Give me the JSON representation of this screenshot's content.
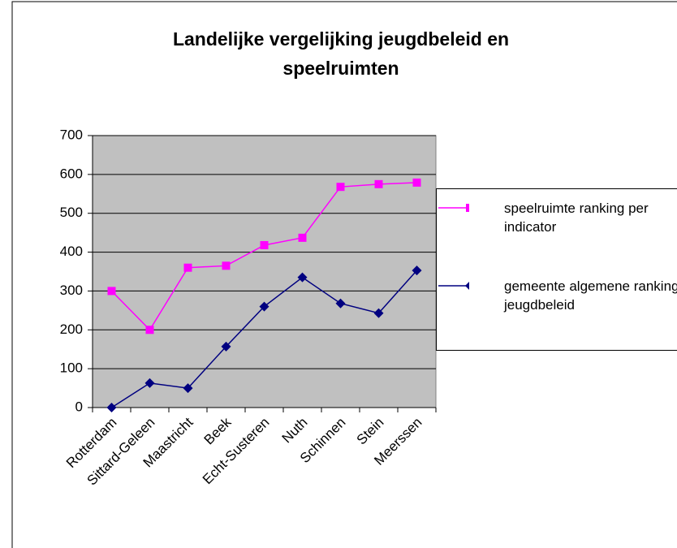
{
  "chart_data": {
    "type": "line",
    "title": "Landelijke vergelijking jeugdbeleid en speelruimten",
    "categories": [
      "Rotterdam",
      "Sittard-Geleen",
      "Maastricht",
      "Beek",
      "Echt-Susteren",
      "Nuth",
      "Schinnen",
      "Stein",
      "Meerssen"
    ],
    "series": [
      {
        "name": "speelruimte ranking per indicator",
        "color": "#ff00ff",
        "marker": "square",
        "values": [
          300,
          200,
          360,
          365,
          418,
          437,
          568,
          575,
          579
        ]
      },
      {
        "name": "gemeente algemene ranking jeugdbeleid",
        "color": "#000080",
        "marker": "diamond",
        "values": [
          0,
          63,
          50,
          157,
          260,
          335,
          268,
          243,
          353
        ]
      }
    ],
    "ylim": [
      0,
      700
    ],
    "yticks": [
      0,
      100,
      200,
      300,
      400,
      500,
      600,
      700
    ],
    "grid": true,
    "legend": "right",
    "plot_background": "#c0c0c0"
  }
}
